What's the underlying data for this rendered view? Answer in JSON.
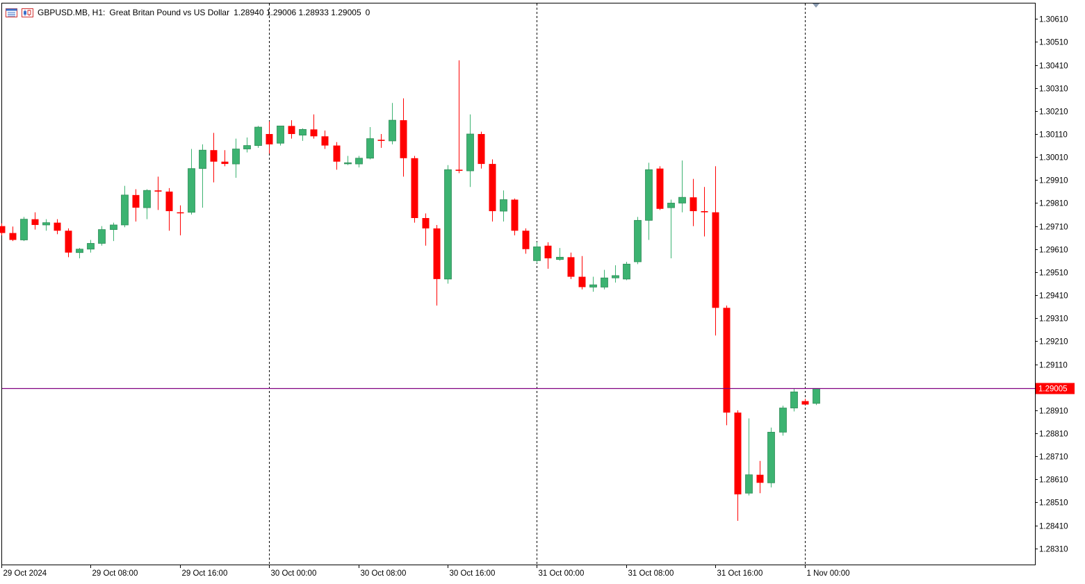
{
  "header": {
    "symbol": "GBPUSD.MB, H1:",
    "description": "Great Britan Pound vs US Dollar",
    "ohlc": "1.28940 1.29006 1.28933 1.29005",
    "volume": "0"
  },
  "chart_data": {
    "type": "candlestick",
    "symbol": "GBPUSD.MB",
    "timeframe": "H1",
    "ylim": [
      1.2824,
      1.3068
    ],
    "y_ticks": [
      "1.30610",
      "1.30510",
      "1.30410",
      "1.30310",
      "1.30210",
      "1.30110",
      "1.30010",
      "1.29910",
      "1.29810",
      "1.29710",
      "1.29610",
      "1.29510",
      "1.29410",
      "1.29310",
      "1.29210",
      "1.29110",
      "1.28910",
      "1.28810",
      "1.28710",
      "1.28610",
      "1.28510",
      "1.28410",
      "1.28310"
    ],
    "x_ticks": [
      {
        "index": 0,
        "label": "29 Oct 2024"
      },
      {
        "index": 8,
        "label": "29 Oct 08:00"
      },
      {
        "index": 16,
        "label": "29 Oct 16:00"
      },
      {
        "index": 24,
        "label": "30 Oct 00:00"
      },
      {
        "index": 32,
        "label": "30 Oct 08:00"
      },
      {
        "index": 40,
        "label": "30 Oct 16:00"
      },
      {
        "index": 48,
        "label": "31 Oct 00:00"
      },
      {
        "index": 56,
        "label": "31 Oct 08:00"
      },
      {
        "index": 64,
        "label": "31 Oct 16:00"
      },
      {
        "index": 72,
        "label": "1 Nov 00:00"
      }
    ],
    "day_separators": [
      24,
      48,
      72
    ],
    "current_price": 1.29005,
    "current_price_label": "1.29005",
    "colors": {
      "bull": "#3cb371",
      "bear": "#ff0000",
      "price_line": "#800080",
      "price_tag": "#ff0000",
      "grid_sep": "#000000"
    },
    "candles": [
      [
        1.2971,
        1.29722,
        1.2967,
        1.2968
      ],
      [
        1.2968,
        1.29708,
        1.29645,
        1.2965
      ],
      [
        1.2965,
        1.2975,
        1.29645,
        1.2974
      ],
      [
        1.2974,
        1.2977,
        1.29695,
        1.29715
      ],
      [
        1.29715,
        1.2974,
        1.2969,
        1.29725
      ],
      [
        1.29725,
        1.2974,
        1.29675,
        1.2969
      ],
      [
        1.2969,
        1.297,
        1.29575,
        1.29595
      ],
      [
        1.29595,
        1.29615,
        1.2957,
        1.2961
      ],
      [
        1.2961,
        1.2965,
        1.29595,
        1.29635
      ],
      [
        1.29635,
        1.2971,
        1.29625,
        1.29695
      ],
      [
        1.29695,
        1.29725,
        1.29645,
        1.29715
      ],
      [
        1.29715,
        1.29885,
        1.29705,
        1.29845
      ],
      [
        1.29845,
        1.2987,
        1.2973,
        1.2979
      ],
      [
        1.2979,
        1.2987,
        1.2974,
        1.29865
      ],
      [
        1.29865,
        1.29925,
        1.2978,
        1.2986
      ],
      [
        1.2986,
        1.29875,
        1.2969,
        1.29775
      ],
      [
        1.2977,
        1.298,
        1.2967,
        1.29768
      ],
      [
        1.2977,
        1.30045,
        1.2976,
        1.2996
      ],
      [
        1.2996,
        1.30065,
        1.2979,
        1.3004
      ],
      [
        1.3004,
        1.30115,
        1.299,
        1.2999
      ],
      [
        1.2999,
        1.3004,
        1.2997,
        1.2998
      ],
      [
        1.2998,
        1.3009,
        1.2992,
        1.30045
      ],
      [
        1.30045,
        1.30095,
        1.3003,
        1.3006
      ],
      [
        1.3006,
        1.30145,
        1.3005,
        1.3014
      ],
      [
        1.3011,
        1.30165,
        1.30025,
        1.30065
      ],
      [
        1.3007,
        1.30145,
        1.3006,
        1.30145
      ],
      [
        1.30145,
        1.3017,
        1.3009,
        1.3011
      ],
      [
        1.30105,
        1.30135,
        1.3008,
        1.3013
      ],
      [
        1.3013,
        1.30195,
        1.3009,
        1.301
      ],
      [
        1.301,
        1.30125,
        1.30045,
        1.3006
      ],
      [
        1.3006,
        1.30075,
        1.29955,
        1.2999
      ],
      [
        1.29985,
        1.30015,
        1.29975,
        1.29985
      ],
      [
        1.2998,
        1.30015,
        1.29965,
        1.30005
      ],
      [
        1.30005,
        1.3014,
        1.3,
        1.3009
      ],
      [
        1.30085,
        1.3011,
        1.3005,
        1.3008
      ],
      [
        1.3008,
        1.30245,
        1.30065,
        1.3017
      ],
      [
        1.3017,
        1.30265,
        1.29925,
        1.30005
      ],
      [
        1.30005,
        1.30015,
        1.29725,
        1.29745
      ],
      [
        1.29745,
        1.29765,
        1.29625,
        1.297
      ],
      [
        1.297,
        1.29715,
        1.29365,
        1.2948
      ],
      [
        1.2948,
        1.29975,
        1.2946,
        1.29955
      ],
      [
        1.29955,
        1.3043,
        1.2994,
        1.2995
      ],
      [
        1.2995,
        1.30195,
        1.2988,
        1.3011
      ],
      [
        1.3011,
        1.3012,
        1.2996,
        1.2998
      ],
      [
        1.2998,
        1.3,
        1.2973,
        1.29775
      ],
      [
        1.29775,
        1.29865,
        1.2973,
        1.29825
      ],
      [
        1.29825,
        1.2983,
        1.2967,
        1.2969
      ],
      [
        1.2969,
        1.297,
        1.2959,
        1.2961
      ],
      [
        1.2956,
        1.2964,
        1.2955,
        1.2962
      ],
      [
        1.29625,
        1.2964,
        1.29525,
        1.2957
      ],
      [
        1.29565,
        1.29615,
        1.2956,
        1.29575
      ],
      [
        1.29575,
        1.29595,
        1.2948,
        1.2949
      ],
      [
        1.2949,
        1.2958,
        1.29435,
        1.29445
      ],
      [
        1.29445,
        1.2949,
        1.29425,
        1.29455
      ],
      [
        1.29445,
        1.2952,
        1.29435,
        1.29485
      ],
      [
        1.29485,
        1.2954,
        1.29465,
        1.29495
      ],
      [
        1.2948,
        1.29555,
        1.29475,
        1.29545
      ],
      [
        1.29555,
        1.2975,
        1.29545,
        1.29735
      ],
      [
        1.29735,
        1.29985,
        1.2965,
        1.29955
      ],
      [
        1.2996,
        1.2997,
        1.2978,
        1.29785
      ],
      [
        1.2979,
        1.29825,
        1.2957,
        1.2981
      ],
      [
        1.2981,
        1.29995,
        1.2977,
        1.29835
      ],
      [
        1.29835,
        1.29915,
        1.2971,
        1.29775
      ],
      [
        1.29775,
        1.2988,
        1.29665,
        1.2977
      ],
      [
        1.2977,
        1.2997,
        1.29235,
        1.29355
      ],
      [
        1.29355,
        1.29365,
        1.28845,
        1.289
      ],
      [
        1.289,
        1.2891,
        1.2843,
        1.28545
      ],
      [
        1.2855,
        1.28875,
        1.2854,
        1.2863
      ],
      [
        1.2863,
        1.2869,
        1.2855,
        1.28595
      ],
      [
        1.28595,
        1.28835,
        1.28575,
        1.28815
      ],
      [
        1.28815,
        1.2893,
        1.288,
        1.2892
      ],
      [
        1.2892,
        1.29005,
        1.28905,
        1.2899
      ],
      [
        1.2895,
        1.2896,
        1.28935,
        1.28935
      ],
      [
        1.2894,
        1.29006,
        1.28933,
        1.29005
      ]
    ]
  }
}
